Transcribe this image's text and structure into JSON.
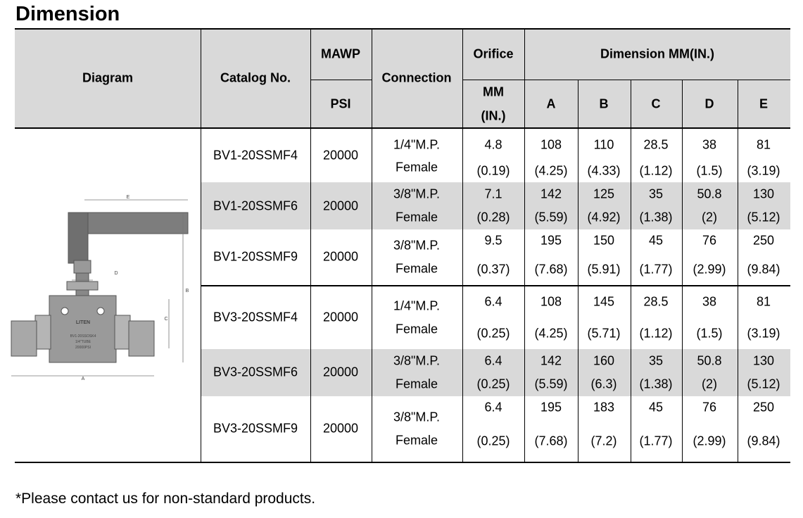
{
  "title": "Dimension",
  "table": {
    "headers": {
      "diagram": "Diagram",
      "catalog": "Catalog No.",
      "mawp": "MAWP",
      "psi": "PSI",
      "connection": "Connection",
      "orifice": "Orifice",
      "orifice_unit": [
        "MM",
        "(IN.)"
      ],
      "dimension": "Dimension MM(IN.)",
      "dims": [
        "A",
        "B",
        "C",
        "D",
        "E"
      ]
    },
    "rows": [
      {
        "catalog": "BV1-20SSMF4",
        "psi": "20000",
        "connection": [
          "1/4\"M.P.",
          "Female"
        ],
        "cells": [
          [
            "4.8",
            "(0.19)"
          ],
          [
            "108",
            "(4.25)"
          ],
          [
            "110",
            "(4.33)"
          ],
          [
            "28.5",
            "(1.12)"
          ],
          [
            "38",
            "(1.5)"
          ],
          [
            "81",
            "(3.19)"
          ]
        ]
      },
      {
        "catalog": "BV1-20SSMF6",
        "psi": "20000",
        "connection": [
          "3/8\"M.P.",
          "Female"
        ],
        "cells": [
          [
            "7.1",
            "(0.28)"
          ],
          [
            "142",
            "(5.59)"
          ],
          [
            "125",
            "(4.92)"
          ],
          [
            "35",
            "(1.38)"
          ],
          [
            "50.8",
            "(2)"
          ],
          [
            "130",
            "(5.12)"
          ]
        ]
      },
      {
        "catalog": "BV1-20SSMF9",
        "psi": "20000",
        "connection": [
          "3/8\"M.P.",
          "Female"
        ],
        "cells": [
          [
            "9.5",
            "(0.37)"
          ],
          [
            "195",
            "(7.68)"
          ],
          [
            "150",
            "(5.91)"
          ],
          [
            "45",
            "(1.77)"
          ],
          [
            "76",
            "(2.99)"
          ],
          [
            "250",
            "(9.84)"
          ]
        ]
      },
      {
        "catalog": "BV3-20SSMF4",
        "psi": "20000",
        "connection": [
          "1/4\"M.P.",
          "Female"
        ],
        "cells": [
          [
            "6.4",
            "(0.25)"
          ],
          [
            "108",
            "(4.25)"
          ],
          [
            "145",
            "(5.71)"
          ],
          [
            "28.5",
            "(1.12)"
          ],
          [
            "38",
            "(1.5)"
          ],
          [
            "81",
            "(3.19)"
          ]
        ]
      },
      {
        "catalog": "BV3-20SSMF6",
        "psi": "20000",
        "connection": [
          "3/8\"M.P.",
          "Female"
        ],
        "cells": [
          [
            "6.4",
            "(0.25)"
          ],
          [
            "142",
            "(5.59)"
          ],
          [
            "160",
            "(6.3)"
          ],
          [
            "35",
            "(1.38)"
          ],
          [
            "50.8",
            "(2)"
          ],
          [
            "130",
            "(5.12)"
          ]
        ]
      },
      {
        "catalog": "BV3-20SSMF9",
        "psi": "20000",
        "connection": [
          "3/8\"M.P.",
          "Female"
        ],
        "cells": [
          [
            "6.4",
            "(0.25)"
          ],
          [
            "195",
            "(7.68)"
          ],
          [
            "183",
            "(7.2)"
          ],
          [
            "45",
            "(1.77)"
          ],
          [
            "76",
            "(2.99)"
          ],
          [
            "250",
            "(9.84)"
          ]
        ]
      }
    ]
  },
  "diagram": {
    "brand": "LITEN",
    "model": "BV1-20SSOSK4",
    "tube": "1/4\"TUBE",
    "pressure": "20000PSI",
    "letters": {
      "a": "A",
      "b": "B",
      "c": "C",
      "d": "D",
      "e": "E"
    }
  },
  "footnote": "*Please contact us for non-standard products."
}
